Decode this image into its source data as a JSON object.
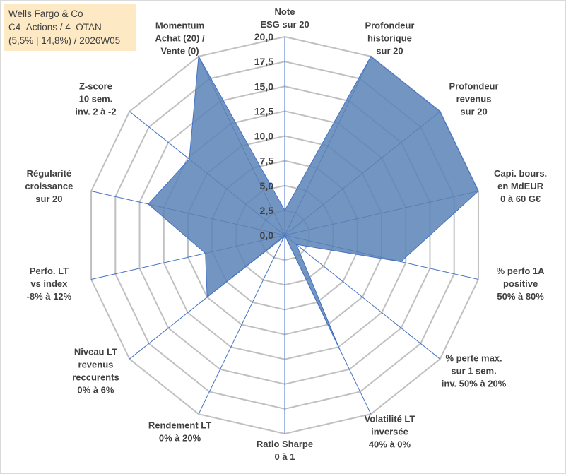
{
  "header": {
    "lines": [
      "Wells Fargo & Co",
      "C4_Actions / 4_OTAN",
      "(5,5% | 14,8%) / 2026W05"
    ]
  },
  "chart_data": {
    "type": "radar",
    "rmin": 0,
    "rmax": 20,
    "tick_values": [
      0,
      2.5,
      5,
      7.5,
      10,
      12.5,
      15,
      17.5,
      20
    ],
    "tick_labels": [
      "0,0",
      "2,5",
      "5,0",
      "7,5",
      "10,0",
      "12,5",
      "15,0",
      "17,5",
      "20,0"
    ],
    "axes": [
      {
        "label": [
          "Note",
          "ESG sur 20"
        ],
        "value": 2.5
      },
      {
        "label": [
          "Profondeur",
          "historique",
          "sur 20"
        ],
        "value": 20
      },
      {
        "label": [
          "Profondeur",
          "revenus",
          "sur 20"
        ],
        "value": 20
      },
      {
        "label": [
          "Capi. bours.",
          "en MdEUR",
          "0 à 60 G€"
        ],
        "value": 20
      },
      {
        "label": [
          "% perfo 1A",
          "positive",
          "50% à 80%"
        ],
        "value": 12
      },
      {
        "label": [
          "% perte max.",
          "sur 1 sem.",
          "inv. 50% à 20%"
        ],
        "value": 1.5
      },
      {
        "label": [
          "Volatilité LT",
          "inversée",
          "40% à 0%"
        ],
        "value": 12.7
      },
      {
        "label": [
          "Ratio Sharpe",
          "0 à 1"
        ],
        "value": 0
      },
      {
        "label": [
          "Rendement LT",
          "0% à 20%"
        ],
        "value": 0.2
      },
      {
        "label": [
          "Niveau LT",
          "revenus",
          "reccurents",
          "0% à 6%"
        ],
        "value": 10
      },
      {
        "label": [
          "Perfo. LT",
          "vs index",
          "-8% à 12%"
        ],
        "value": 8.2
      },
      {
        "label": [
          "Régularité",
          "croissance",
          "sur 20"
        ],
        "value": 14.1
      },
      {
        "label": [
          "Z-score",
          "10 sem.",
          "inv. 2 à -2"
        ],
        "value": 12.3
      },
      {
        "label": [
          "Momentum",
          "Achat (20) /",
          "Vente (0)"
        ],
        "value": 20
      }
    ],
    "colors": {
      "fill": "#5b82b6",
      "stroke": "#4472c4",
      "grid": "#c0c0c0",
      "spoke": "#4472c4"
    }
  }
}
